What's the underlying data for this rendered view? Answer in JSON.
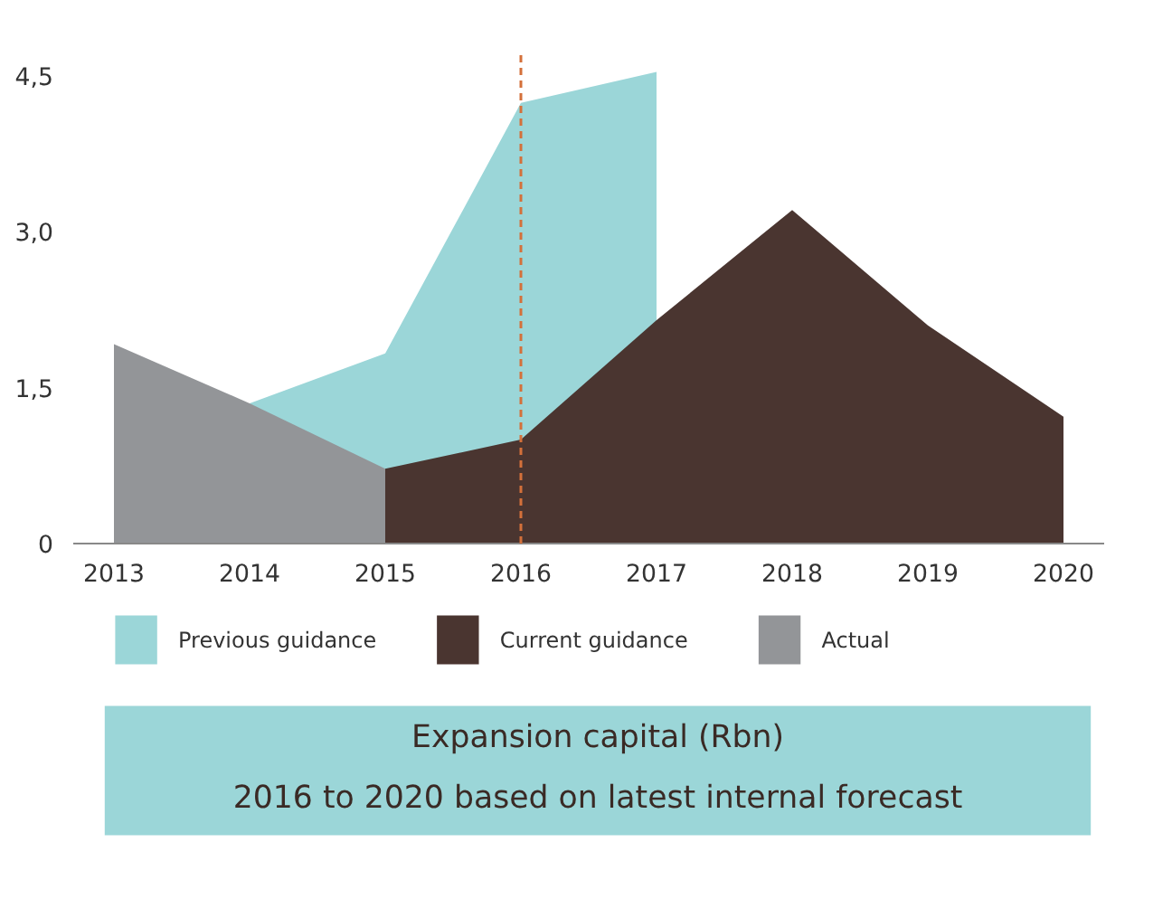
{
  "chart_data": {
    "type": "area",
    "title": "Expansion capital (Rbn)",
    "subtitle": "2016 to 2020 based on latest internal forecast",
    "series": [
      {
        "name": "Previous guidance",
        "color": "#9bd6d8",
        "x": [
          2014,
          2015,
          2016,
          2017
        ],
        "values": [
          1.35,
          1.83,
          4.24,
          4.54
        ]
      },
      {
        "name": "Current guidance",
        "color": "#4a3530",
        "x": [
          2015,
          2016,
          2017,
          2018,
          2019,
          2020
        ],
        "values": [
          0.72,
          1.0,
          2.15,
          3.21,
          2.1,
          1.22
        ]
      },
      {
        "name": "Actual",
        "color": "#939598",
        "x": [
          2013,
          2014,
          2015
        ],
        "values": [
          1.92,
          1.35,
          0.72
        ]
      }
    ],
    "xlim": [
      2012.7,
      2020.3
    ],
    "xticks": [
      2013,
      2014,
      2015,
      2016,
      2017,
      2018,
      2019,
      2020
    ],
    "ylim": [
      0,
      4.7
    ],
    "yticks": [
      0,
      {
        "value": 1.5,
        "label": "1,5"
      },
      {
        "value": 3.0,
        "label": "3,0"
      },
      {
        "value": 4.5,
        "label": "4,5"
      }
    ],
    "ref_lines": [
      {
        "axis": "x",
        "value": 2016,
        "color": "#d4703a",
        "line_style": "dashed"
      }
    ],
    "grid": false,
    "legend": "bottom"
  }
}
